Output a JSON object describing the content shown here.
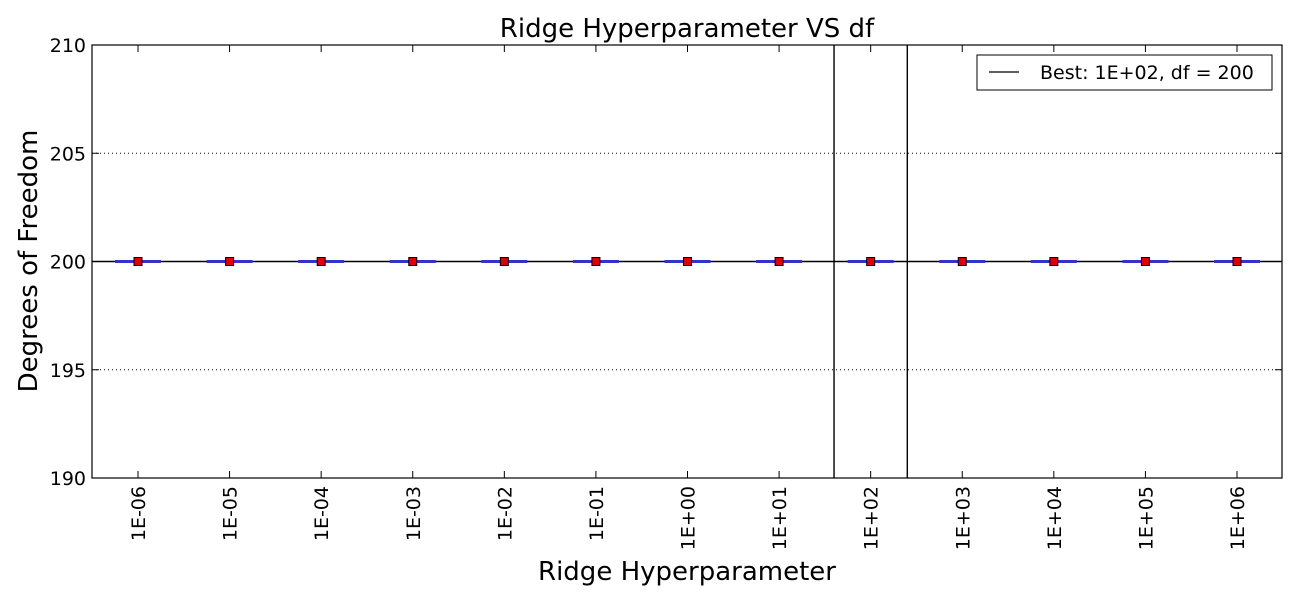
{
  "chart_data": {
    "type": "box",
    "title": "Ridge Hyperparameter VS df",
    "xlabel": "Ridge Hyperparameter",
    "ylabel": "Degrees of Freedom",
    "categories": [
      "1E-06",
      "1E-05",
      "1E-04",
      "1E-03",
      "1E-02",
      "1E-01",
      "1E+00",
      "1E+01",
      "1E+02",
      "1E+03",
      "1E+04",
      "1E+05",
      "1E+06"
    ],
    "values": [
      200,
      200,
      200,
      200,
      200,
      200,
      200,
      200,
      200,
      200,
      200,
      200,
      200
    ],
    "ylim": [
      190,
      210
    ],
    "yticks": [
      190,
      195,
      200,
      205,
      210
    ],
    "grid": "y-dotted",
    "best": {
      "category": "1E+02",
      "value": 200,
      "legend_label": "Best: 1E+02, df = 200"
    },
    "legend_position": "top-right",
    "colors": {
      "marker": "#dd0000",
      "box": "#3333cc",
      "lines": "#000000"
    }
  }
}
